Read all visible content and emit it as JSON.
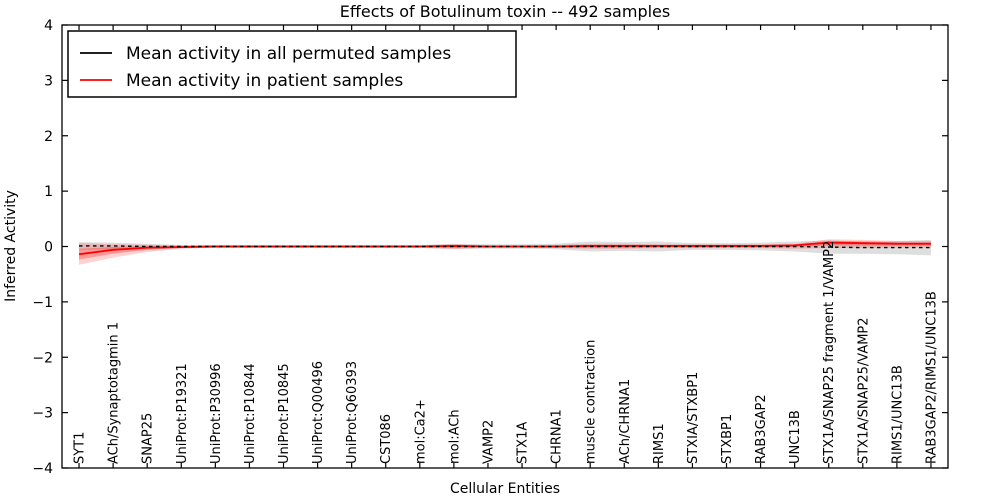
{
  "chart_data": {
    "type": "line",
    "title": "Effects of Botulinum toxin -- 492 samples",
    "xlabel": "Cellular Entities",
    "ylabel": "Inferred Activity",
    "ylim": [
      -4,
      4
    ],
    "ytick_step": 1,
    "grid": false,
    "legend_position": "upper left",
    "categories": [
      "SYT1",
      "ACh/Synaptotagmin 1",
      "SNAP25",
      "UniProt:P19321",
      "UniProt:P30996",
      "UniProt:P10844",
      "UniProt:P10845",
      "UniProt:Q00496",
      "UniProt:Q60393",
      "CST086",
      "mol:Ca2+",
      "mol:ACh",
      "VAMP2",
      "STX1A",
      "CHRNA1",
      "muscle contraction",
      "ACh/CHRNA1",
      "RIMS1",
      "STXIA/STXBP1",
      "STXBP1",
      "RAB3GAP2",
      "UNC13B",
      "STX1A/SNAP25 fragment 1/VAMP2",
      "STX1A/SNAP25/VAMP2",
      "RIMS1/UNC13B",
      "RAB3GAP2/RIMS1/UNC13B"
    ],
    "series": [
      {
        "name": "Mean activity in all permuted samples",
        "color": "#000000",
        "values": [
          0.01,
          0.01,
          0,
          0,
          0,
          0,
          0,
          0,
          0,
          0,
          0,
          0,
          0,
          0,
          0,
          0,
          0,
          0,
          0,
          0,
          0,
          0,
          -0.01,
          -0.02,
          -0.02,
          -0.02
        ],
        "band_half_width": [
          0.07,
          0.06,
          0.05,
          0.03,
          0.03,
          0.03,
          0.03,
          0.03,
          0.03,
          0.03,
          0.03,
          0.04,
          0.04,
          0.04,
          0.05,
          0.09,
          0.08,
          0.09,
          0.06,
          0.06,
          0.07,
          0.09,
          0.12,
          0.11,
          0.12,
          0.14
        ],
        "band_color": "#999999"
      },
      {
        "name": "Mean activity in patient samples",
        "color": "#ff0000",
        "values": [
          -0.14,
          -0.06,
          -0.02,
          -0.01,
          0,
          0,
          0,
          0,
          0,
          0,
          0,
          0.01,
          0,
          0,
          0,
          0.01,
          0.01,
          0.01,
          0.01,
          0.01,
          0.01,
          0.02,
          0.07,
          0.06,
          0.05,
          0.05
        ],
        "band_low": [
          -0.33,
          -0.2,
          -0.1,
          -0.04,
          -0.02,
          -0.02,
          -0.02,
          -0.02,
          -0.02,
          -0.02,
          -0.02,
          -0.05,
          -0.02,
          -0.02,
          -0.03,
          -0.04,
          -0.04,
          -0.03,
          -0.03,
          -0.03,
          -0.03,
          -0.04,
          -0.03,
          -0.03,
          -0.02,
          -0.02
        ],
        "band_high": [
          0.06,
          0.04,
          0.03,
          0.02,
          0.02,
          0.02,
          0.02,
          0.02,
          0.02,
          0.02,
          0.02,
          0.05,
          0.02,
          0.02,
          0.03,
          0.05,
          0.05,
          0.04,
          0.04,
          0.04,
          0.04,
          0.05,
          0.13,
          0.12,
          0.1,
          0.1
        ],
        "band_color": "#ff0000"
      }
    ]
  }
}
